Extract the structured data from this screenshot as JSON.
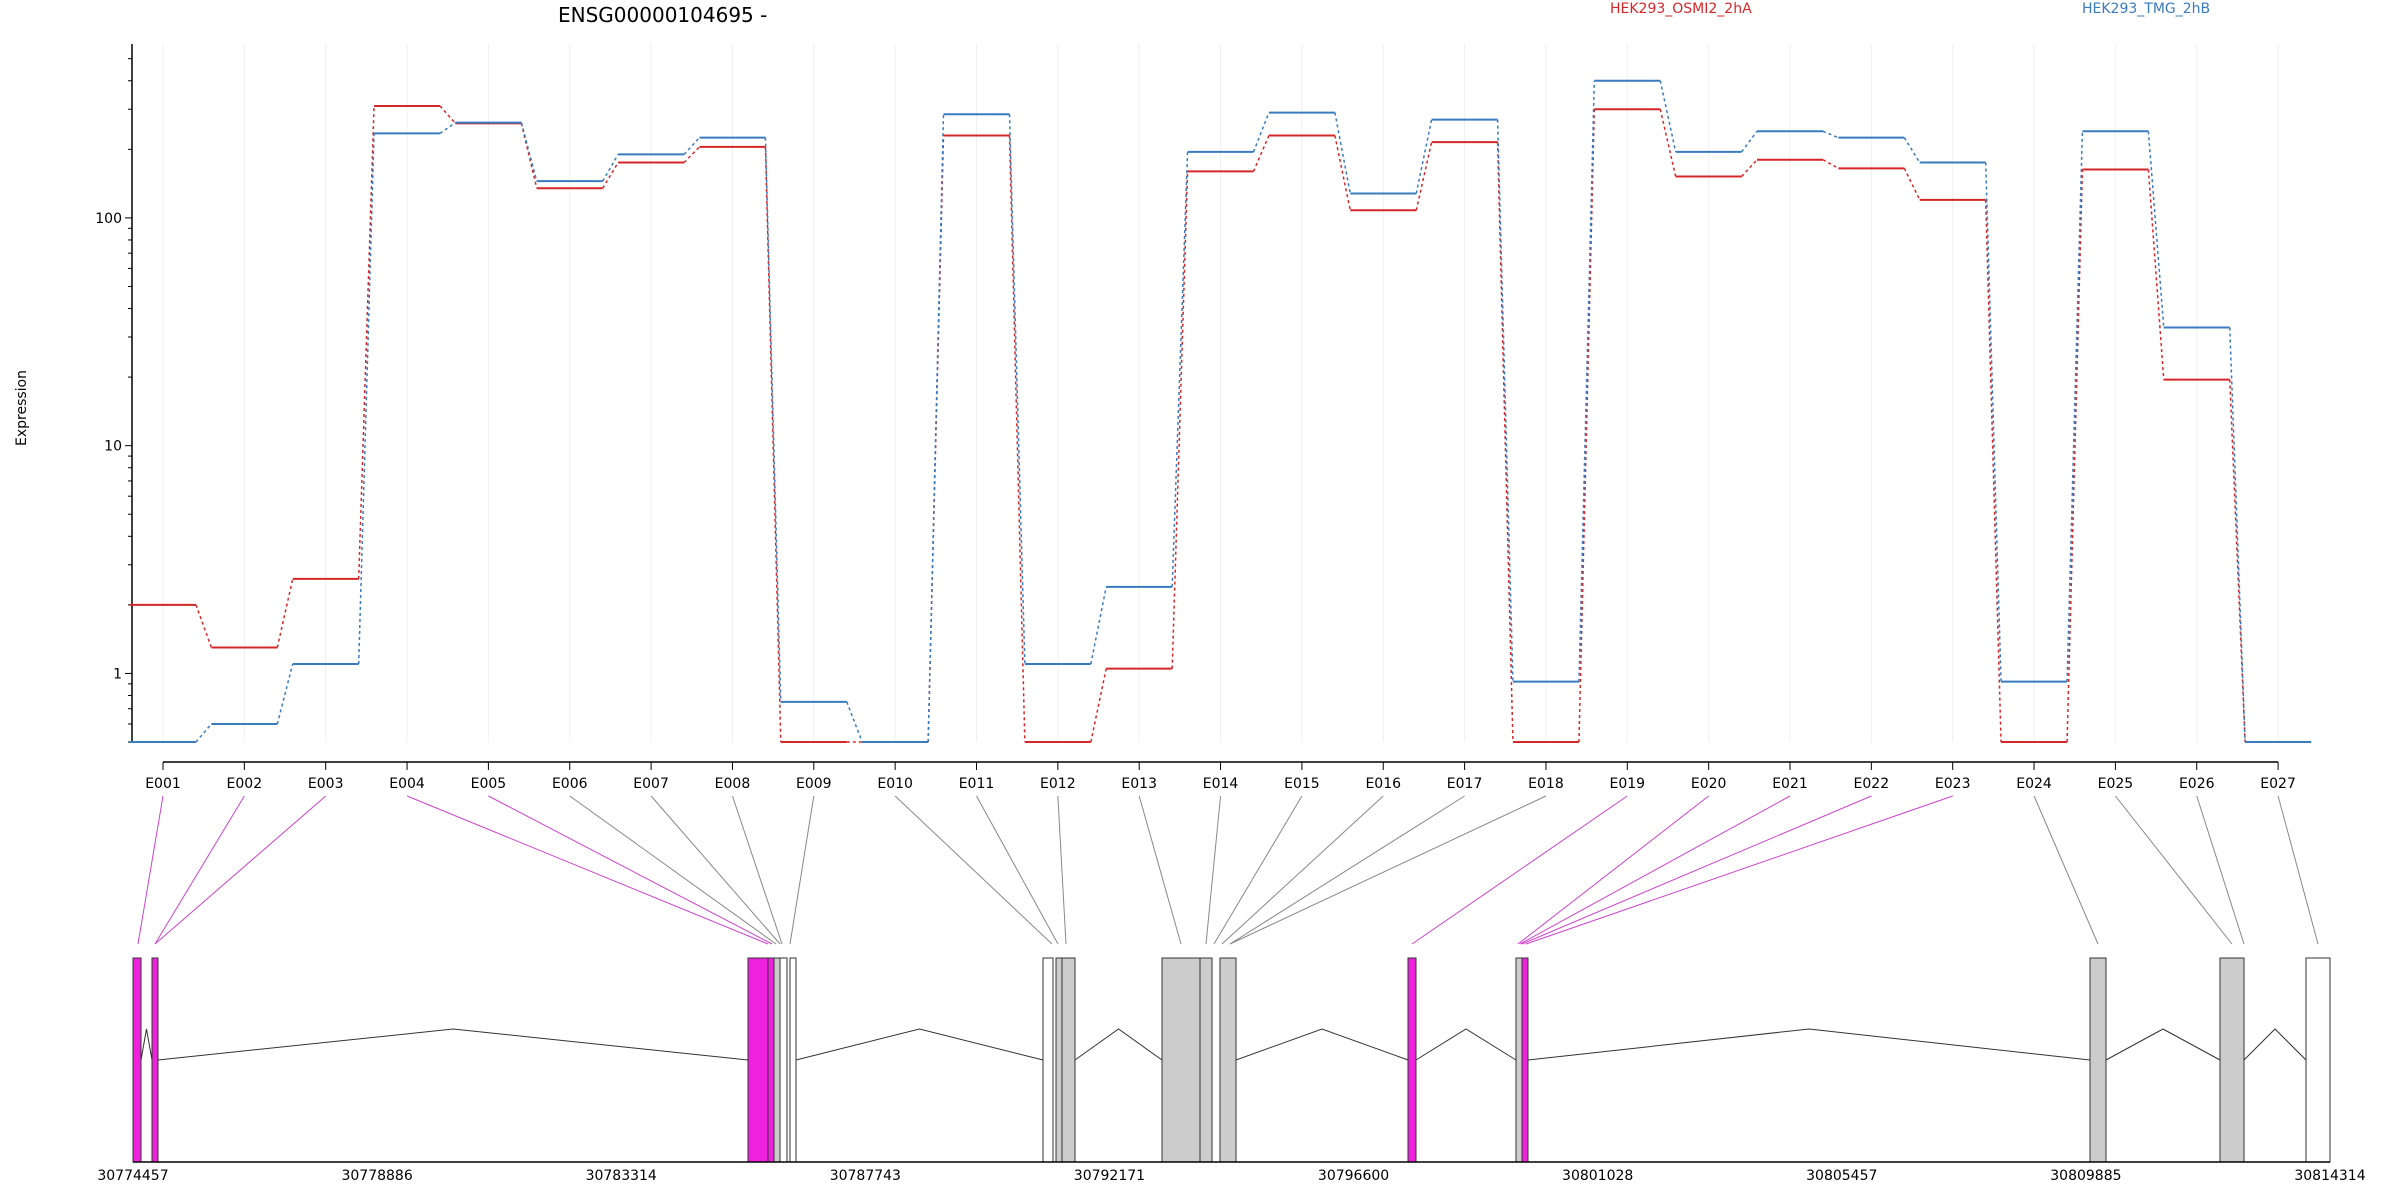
{
  "chart_data": {
    "type": "line",
    "title": "ENSG00000104695 -",
    "ylabel": "Expression",
    "yscale": "log",
    "ylim": [
      0.5,
      580
    ],
    "yticks": [
      1,
      10,
      100
    ],
    "ytick_labels": [
      "1",
      "10",
      "100"
    ],
    "categories": [
      "E001",
      "E002",
      "E003",
      "E004",
      "E005",
      "E006",
      "E007",
      "E008",
      "E009",
      "E010",
      "E011",
      "E012",
      "E013",
      "E014",
      "E015",
      "E016",
      "E017",
      "E018",
      "E019",
      "E020",
      "E021",
      "E022",
      "E023",
      "E024",
      "E025",
      "E026",
      "E027"
    ],
    "legend_position": "top",
    "series": [
      {
        "name": "HEK293_OSMI2_2hA",
        "color": "#d62728",
        "values": [
          2.0,
          1.3,
          2.6,
          310,
          260,
          135,
          175,
          205,
          0.5,
          0.5,
          230,
          0.5,
          1.05,
          160,
          230,
          108,
          215,
          0.5,
          300,
          152,
          180,
          165,
          120,
          0.5,
          163,
          19.5,
          0.5
        ]
      },
      {
        "name": "HEK293_TMG_2hB",
        "color": "#3a7bbf",
        "values": [
          0.5,
          0.6,
          1.1,
          235,
          262,
          145,
          190,
          225,
          0.75,
          0.5,
          285,
          1.1,
          2.4,
          195,
          290,
          128,
          270,
          0.92,
          400,
          195,
          240,
          225,
          175,
          0.92,
          240,
          33,
          0.5
        ]
      }
    ],
    "gene_model": {
      "coordinate_ticks": [
        "30774457",
        "30778886",
        "30783314",
        "30787743",
        "30792171",
        "30796600",
        "30801028",
        "30805457",
        "30809885",
        "30814314"
      ],
      "highlight_color": "#ee22dd",
      "exon_color": "#cccccc",
      "exon_blocks": [
        {
          "fill": "highlight"
        },
        {
          "fill": "highlight"
        },
        {
          "fill": "highlight"
        },
        {
          "fill": "highlight"
        },
        {
          "fill": "exon"
        },
        {
          "fill": "white"
        },
        {
          "fill": "white"
        },
        {
          "fill": "white"
        },
        {
          "fill": "exon"
        },
        {
          "fill": "exon"
        },
        {
          "fill": "exon"
        },
        {
          "fill": "exon"
        },
        {
          "fill": "exon"
        },
        {
          "fill": "highlight"
        },
        {
          "fill": "exon"
        },
        {
          "fill": "highlight"
        },
        {
          "fill": "exon"
        },
        {
          "fill": "exon"
        },
        {
          "fill": "white"
        }
      ],
      "exon_highlighted": [
        true,
        true,
        true,
        true,
        true,
        false,
        false,
        false,
        false,
        false,
        false,
        false,
        false,
        false,
        false,
        false,
        false,
        false,
        true,
        true,
        true,
        true,
        true,
        false,
        false,
        false,
        false
      ]
    }
  }
}
